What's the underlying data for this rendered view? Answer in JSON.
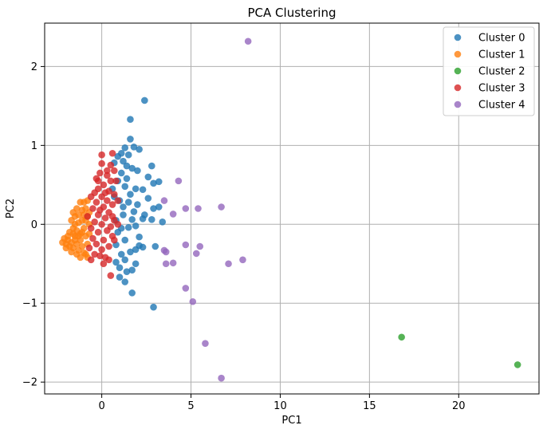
{
  "chart_data": {
    "type": "scatter",
    "title": "PCA Clustering",
    "xlabel": "PC1",
    "ylabel": "PC2",
    "xlim": [
      -3.2,
      24.5
    ],
    "ylim": [
      -2.15,
      2.55
    ],
    "xticks": [
      0,
      5,
      10,
      15,
      20
    ],
    "xtick_labels": [
      "0",
      "5",
      "10",
      "15",
      "20"
    ],
    "yticks": [
      -2,
      -1,
      0,
      1,
      2
    ],
    "ytick_labels": [
      "−2",
      "−1",
      "0",
      "1",
      "2"
    ],
    "grid": true,
    "legend_position": "top-right",
    "series": [
      {
        "name": "Cluster 0",
        "color": "#1f77b4",
        "points": [
          [
            2.4,
            1.57
          ],
          [
            1.6,
            1.33
          ],
          [
            1.6,
            1.08
          ],
          [
            1.3,
            0.97
          ],
          [
            1.8,
            0.98
          ],
          [
            2.1,
            0.95
          ],
          [
            1.1,
            0.9
          ],
          [
            0.9,
            0.86
          ],
          [
            1.5,
            0.88
          ],
          [
            1.2,
            0.8
          ],
          [
            0.7,
            0.78
          ],
          [
            1.4,
            0.74
          ],
          [
            2.8,
            0.74
          ],
          [
            2.0,
            0.68
          ],
          [
            1.7,
            0.71
          ],
          [
            1.1,
            0.65
          ],
          [
            2.9,
            0.52
          ],
          [
            3.2,
            0.54
          ],
          [
            2.3,
            0.44
          ],
          [
            1.9,
            0.45
          ],
          [
            1.3,
            0.48
          ],
          [
            2.6,
            0.33
          ],
          [
            1.5,
            0.28
          ],
          [
            2.9,
            0.2
          ],
          [
            3.2,
            0.22
          ],
          [
            1.0,
            0.3
          ],
          [
            1.8,
            0.16
          ],
          [
            2.3,
            0.07
          ],
          [
            2.8,
            0.06
          ],
          [
            3.4,
            0.03
          ],
          [
            1.2,
            0.12
          ],
          [
            1.9,
            -0.02
          ],
          [
            1.5,
            -0.04
          ],
          [
            2.1,
            -0.16
          ],
          [
            0.9,
            -0.1
          ],
          [
            1.3,
            -0.2
          ],
          [
            0.8,
            -0.26
          ],
          [
            2.1,
            -0.27
          ],
          [
            3.0,
            -0.28
          ],
          [
            1.6,
            -0.35
          ],
          [
            1.9,
            -0.32
          ],
          [
            2.3,
            -0.29
          ],
          [
            1.1,
            -0.38
          ],
          [
            0.8,
            -0.48
          ],
          [
            1.3,
            -0.45
          ],
          [
            1.9,
            -0.5
          ],
          [
            1.0,
            -0.55
          ],
          [
            1.4,
            -0.6
          ],
          [
            1.7,
            -0.58
          ],
          [
            1.0,
            -0.67
          ],
          [
            1.3,
            -0.73
          ],
          [
            1.7,
            -0.87
          ],
          [
            2.9,
            -1.05
          ],
          [
            0.6,
            0.45
          ],
          [
            1.4,
            0.58
          ],
          [
            0.9,
            0.55
          ],
          [
            1.6,
            0.38
          ],
          [
            2.4,
            0.12
          ],
          [
            2.6,
            0.6
          ],
          [
            0.7,
            0.35
          ],
          [
            1.2,
            0.22
          ],
          [
            1.7,
            0.06
          ],
          [
            0.8,
            0.05
          ],
          [
            1.1,
            -0.05
          ],
          [
            2.0,
            0.25
          ]
        ]
      },
      {
        "name": "Cluster 1",
        "color": "#ff7f0e",
        "points": [
          [
            -2.2,
            -0.23
          ],
          [
            -2.0,
            -0.25
          ],
          [
            -1.9,
            -0.2
          ],
          [
            -2.1,
            -0.18
          ],
          [
            -1.8,
            -0.28
          ],
          [
            -1.7,
            -0.23
          ],
          [
            -1.6,
            -0.3
          ],
          [
            -1.5,
            -0.15
          ],
          [
            -1.4,
            -0.25
          ],
          [
            -1.3,
            -0.33
          ],
          [
            -1.2,
            -0.2
          ],
          [
            -1.1,
            -0.28
          ],
          [
            -1.0,
            -0.36
          ],
          [
            -1.8,
            -0.1
          ],
          [
            -1.6,
            -0.05
          ],
          [
            -1.5,
            0.0
          ],
          [
            -1.4,
            -0.08
          ],
          [
            -1.3,
            0.02
          ],
          [
            -1.2,
            -0.12
          ],
          [
            -1.1,
            0.05
          ],
          [
            -1.0,
            -0.05
          ],
          [
            -0.9,
            -0.15
          ],
          [
            -0.8,
            -0.25
          ],
          [
            -1.7,
            0.05
          ],
          [
            -1.5,
            0.1
          ],
          [
            -1.3,
            0.12
          ],
          [
            -1.1,
            0.18
          ],
          [
            -1.0,
            0.28
          ],
          [
            -0.9,
            0.2
          ],
          [
            -0.8,
            0.1
          ],
          [
            -1.2,
            0.28
          ],
          [
            -1.6,
            -0.12
          ],
          [
            -1.9,
            -0.15
          ],
          [
            -0.9,
            -0.38
          ],
          [
            -1.2,
            -0.42
          ],
          [
            -0.8,
            -0.42
          ],
          [
            -1.4,
            -0.38
          ],
          [
            -1.7,
            -0.35
          ],
          [
            -2.0,
            -0.3
          ],
          [
            -0.7,
            0.0
          ],
          [
            -0.7,
            -0.12
          ],
          [
            -0.7,
            0.15
          ],
          [
            -1.4,
            0.2
          ],
          [
            -1.0,
            0.12
          ],
          [
            -0.9,
            0.05
          ],
          [
            -1.5,
            -0.2
          ],
          [
            -1.3,
            -0.15
          ],
          [
            -1.1,
            -0.1
          ],
          [
            -1.6,
            0.15
          ],
          [
            -0.8,
            0.3
          ]
        ]
      },
      {
        "name": "Cluster 2",
        "color": "#2ca02c",
        "points": [
          [
            16.8,
            -1.43
          ],
          [
            23.3,
            -1.78
          ]
        ]
      },
      {
        "name": "Cluster 3",
        "color": "#d62728",
        "points": [
          [
            0.0,
            0.88
          ],
          [
            0.6,
            0.9
          ],
          [
            0.5,
            0.75
          ],
          [
            0.0,
            0.77
          ],
          [
            0.7,
            0.68
          ],
          [
            -0.1,
            0.65
          ],
          [
            0.3,
            0.62
          ],
          [
            -0.3,
            0.58
          ],
          [
            0.5,
            0.55
          ],
          [
            0.1,
            0.5
          ],
          [
            -0.2,
            0.45
          ],
          [
            0.4,
            0.42
          ],
          [
            0.7,
            0.38
          ],
          [
            -0.4,
            0.4
          ],
          [
            0.0,
            0.35
          ],
          [
            0.3,
            0.3
          ],
          [
            -0.3,
            0.28
          ],
          [
            0.6,
            0.25
          ],
          [
            0.1,
            0.22
          ],
          [
            -0.5,
            0.2
          ],
          [
            0.4,
            0.15
          ],
          [
            -0.2,
            0.12
          ],
          [
            0.2,
            0.08
          ],
          [
            0.7,
            0.05
          ],
          [
            -0.4,
            0.03
          ],
          [
            0.0,
            0.0
          ],
          [
            0.5,
            -0.03
          ],
          [
            -0.6,
            -0.05
          ],
          [
            0.3,
            -0.08
          ],
          [
            -0.2,
            -0.1
          ],
          [
            0.6,
            -0.15
          ],
          [
            -0.5,
            -0.18
          ],
          [
            0.1,
            -0.2
          ],
          [
            -0.3,
            -0.25
          ],
          [
            0.4,
            -0.28
          ],
          [
            -0.7,
            -0.3
          ],
          [
            0.0,
            -0.32
          ],
          [
            -0.4,
            -0.38
          ],
          [
            0.2,
            -0.42
          ],
          [
            -0.6,
            -0.45
          ],
          [
            0.1,
            -0.5
          ],
          [
            0.5,
            -0.65
          ],
          [
            0.8,
            0.55
          ],
          [
            0.9,
            0.3
          ],
          [
            -0.1,
            0.18
          ],
          [
            0.2,
            0.4
          ],
          [
            -0.6,
            0.35
          ],
          [
            0.6,
            0.1
          ],
          [
            -0.1,
            -0.4
          ],
          [
            0.7,
            -0.2
          ],
          [
            -0.8,
            0.1
          ],
          [
            0.3,
            0.68
          ],
          [
            0.9,
            0.0
          ],
          [
            -0.2,
            0.55
          ],
          [
            0.4,
            -0.45
          ]
        ]
      },
      {
        "name": "Cluster 4",
        "color": "#9467bd",
        "points": [
          [
            8.2,
            2.32
          ],
          [
            4.3,
            0.55
          ],
          [
            3.5,
            0.3
          ],
          [
            4.7,
            0.2
          ],
          [
            5.4,
            0.2
          ],
          [
            6.7,
            0.22
          ],
          [
            4.0,
            0.13
          ],
          [
            4.7,
            -0.26
          ],
          [
            5.5,
            -0.28
          ],
          [
            3.6,
            -0.35
          ],
          [
            5.3,
            -0.37
          ],
          [
            3.5,
            -0.33
          ],
          [
            3.6,
            -0.5
          ],
          [
            4.0,
            -0.49
          ],
          [
            7.1,
            -0.5
          ],
          [
            7.9,
            -0.45
          ],
          [
            4.7,
            -0.81
          ],
          [
            5.1,
            -0.98
          ],
          [
            5.8,
            -1.51
          ],
          [
            6.7,
            -1.95
          ]
        ]
      }
    ]
  }
}
